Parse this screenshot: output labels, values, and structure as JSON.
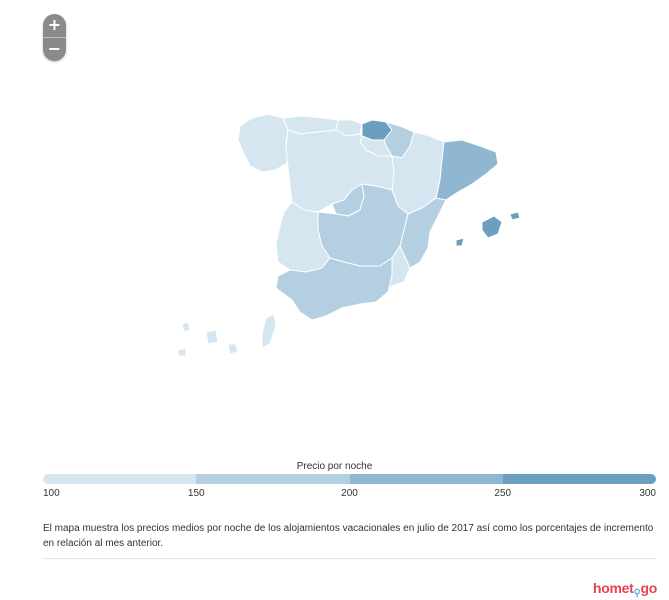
{
  "zoom": {
    "in_label": "+",
    "out_label": "−"
  },
  "legend": {
    "title": "Precio por noche",
    "ticks": [
      "100",
      "150",
      "200",
      "250",
      "300"
    ],
    "bands": [
      {
        "from": 100,
        "to": 150,
        "color": "#d6e6f1"
      },
      {
        "from": 150,
        "to": 200,
        "color": "#b3cfe1"
      },
      {
        "from": 200,
        "to": 250,
        "color": "#8fb7d1"
      },
      {
        "from": 250,
        "to": 300,
        "color": "#6b9fc1"
      }
    ]
  },
  "caption": "El mapa muestra los precios medios por noche de los alojamientos vacacionales en julio de 2017 así como los porcentajes de incremento en relación al mes anterior.",
  "brand": {
    "home": "home",
    "pin": "⚲",
    "go": "go",
    "prefix": "homet"
  },
  "map_data": {
    "regions": [
      {
        "name": "Galicia",
        "color": "#d6e6f1"
      },
      {
        "name": "Asturias",
        "color": "#d6e6f1"
      },
      {
        "name": "Cantabria",
        "color": "#d6e6f1"
      },
      {
        "name": "País Vasco",
        "color": "#6b9fc1"
      },
      {
        "name": "Navarra",
        "color": "#b3cfe1"
      },
      {
        "name": "La Rioja",
        "color": "#d6e6f1"
      },
      {
        "name": "Aragón",
        "color": "#d6e6f1"
      },
      {
        "name": "Cataluña",
        "color": "#8fb7d1"
      },
      {
        "name": "Castilla y León",
        "color": "#d6e6f1"
      },
      {
        "name": "Madrid",
        "color": "#b3cfe1"
      },
      {
        "name": "Castilla-La Mancha",
        "color": "#b3cfe1"
      },
      {
        "name": "Comunidad Valenciana",
        "color": "#b3cfe1"
      },
      {
        "name": "Extremadura",
        "color": "#d6e6f1"
      },
      {
        "name": "Andalucía",
        "color": "#b3cfe1"
      },
      {
        "name": "Región de Murcia",
        "color": "#d6e6f1"
      },
      {
        "name": "Islas Baleares",
        "color": "#6b9fc1"
      },
      {
        "name": "Canarias",
        "color": "#d6e6f1"
      }
    ]
  }
}
